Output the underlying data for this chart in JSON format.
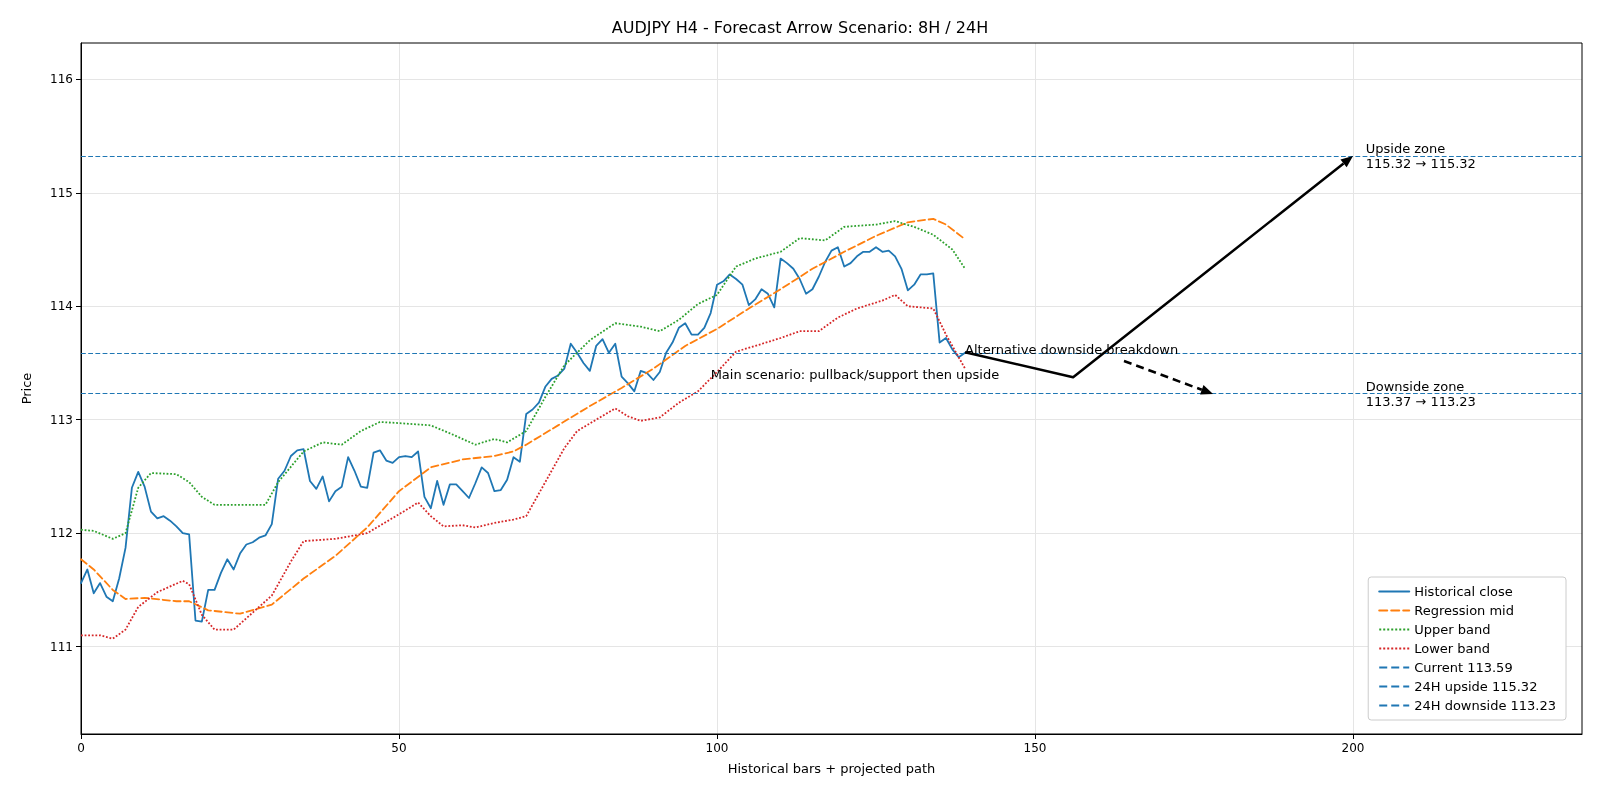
{
  "chart_data": {
    "type": "line",
    "title": "AUDJPY H4 - Forecast Arrow Scenario: 8H / 24H",
    "xlabel": "Historical bars + projected path",
    "ylabel": "Price",
    "xlim": [
      0,
      236
    ],
    "ylim": [
      110.23,
      116.32
    ],
    "xticks": [
      0,
      50,
      100,
      150,
      200
    ],
    "yticks": [
      111,
      112,
      113,
      114,
      115,
      116
    ],
    "grid": true,
    "legend": "bottom right",
    "series": [
      {
        "name": "Historical close",
        "color": "#1f77b4",
        "line_style": "solid",
        "marker": "none",
        "x": [
          0,
          1,
          2,
          3,
          4,
          5,
          6,
          7,
          8,
          9,
          10,
          11,
          12,
          13,
          14,
          15,
          16,
          17,
          18,
          19,
          20,
          21,
          22,
          23,
          24,
          25,
          26,
          27,
          28,
          29,
          30,
          31,
          32,
          33,
          34,
          35,
          36,
          37,
          38,
          39,
          40,
          41,
          42,
          43,
          44,
          45,
          46,
          47,
          48,
          49,
          50,
          51,
          52,
          53,
          54,
          55,
          56,
          57,
          58,
          59,
          60,
          61,
          62,
          63,
          64,
          65,
          66,
          67,
          68,
          69,
          70,
          71,
          72,
          73,
          74,
          75,
          76,
          77,
          78,
          79,
          80,
          81,
          82,
          83,
          84,
          85,
          86,
          87,
          88,
          89,
          90,
          91,
          92,
          93,
          94,
          95,
          96,
          97,
          98,
          99,
          100,
          101,
          102,
          103,
          104,
          105,
          106,
          107,
          108,
          109,
          110,
          111,
          112,
          113,
          114,
          115,
          116,
          117,
          118,
          119,
          120,
          121,
          122,
          123,
          124,
          125,
          126,
          127,
          128,
          129,
          130,
          131,
          132,
          133,
          134,
          135,
          136,
          137,
          138,
          139
        ],
        "values": [
          111.56,
          111.68,
          111.47,
          111.56,
          111.44,
          111.4,
          111.6,
          111.87,
          112.4,
          112.54,
          112.41,
          112.19,
          112.13,
          112.15,
          112.11,
          112.06,
          112.0,
          111.99,
          111.23,
          111.22,
          111.5,
          111.5,
          111.65,
          111.77,
          111.68,
          111.82,
          111.9,
          111.92,
          111.96,
          111.98,
          112.08,
          112.48,
          112.55,
          112.68,
          112.73,
          112.74,
          112.46,
          112.39,
          112.5,
          112.28,
          112.37,
          112.41,
          112.67,
          112.55,
          112.41,
          112.4,
          112.71,
          112.73,
          112.64,
          112.62,
          112.67,
          112.68,
          112.67,
          112.72,
          112.32,
          112.22,
          112.46,
          112.25,
          112.43,
          112.43,
          112.37,
          112.31,
          112.44,
          112.58,
          112.53,
          112.37,
          112.38,
          112.47,
          112.67,
          112.63,
          113.05,
          113.09,
          113.15,
          113.29,
          113.36,
          113.39,
          113.45,
          113.67,
          113.59,
          113.5,
          113.43,
          113.65,
          113.71,
          113.59,
          113.67,
          113.38,
          113.32,
          113.25,
          113.43,
          113.41,
          113.35,
          113.42,
          113.59,
          113.68,
          113.81,
          113.85,
          113.75,
          113.75,
          113.81,
          113.94,
          114.19,
          114.22,
          114.28,
          114.24,
          114.19,
          114.01,
          114.06,
          114.15,
          114.11,
          113.99,
          114.42,
          114.38,
          114.33,
          114.24,
          114.11,
          114.15,
          114.26,
          114.39,
          114.49,
          114.52,
          114.35,
          114.38,
          114.44,
          114.48,
          114.48,
          114.52,
          114.48,
          114.49,
          114.44,
          114.33,
          114.14,
          114.19,
          114.28,
          114.28,
          114.29,
          113.68,
          113.72,
          113.62,
          113.55,
          113.59
        ]
      },
      {
        "name": "Regression mid",
        "color": "#ff7f0e",
        "line_style": "dashed",
        "marker": "none",
        "x": [
          0,
          2,
          5,
          7,
          10,
          15,
          17,
          20,
          25,
          30,
          35,
          40,
          45,
          50,
          55,
          60,
          65,
          68,
          70,
          75,
          80,
          85,
          90,
          95,
          100,
          105,
          110,
          115,
          120,
          125,
          130,
          134,
          136,
          139
        ],
        "values": [
          111.77,
          111.68,
          111.5,
          111.42,
          111.43,
          111.4,
          111.4,
          111.32,
          111.29,
          111.37,
          111.6,
          111.8,
          112.05,
          112.37,
          112.58,
          112.65,
          112.68,
          112.72,
          112.78,
          112.95,
          113.12,
          113.28,
          113.45,
          113.65,
          113.8,
          113.98,
          114.15,
          114.33,
          114.48,
          114.62,
          114.74,
          114.77,
          114.72,
          114.59
        ]
      },
      {
        "name": "Upper band",
        "color": "#2ca02c",
        "line_style": "dotted",
        "marker": "none",
        "x": [
          0,
          2,
          5,
          7,
          9,
          11,
          15,
          17,
          19,
          21,
          25,
          29,
          31,
          35,
          38,
          41,
          44,
          47,
          50,
          55,
          58,
          62,
          65,
          67,
          70,
          73,
          76,
          80,
          84,
          88,
          91,
          94,
          97,
          100,
          103,
          106,
          110,
          113,
          117,
          120,
          125,
          128,
          131,
          134,
          137,
          139
        ],
        "values": [
          112.03,
          112.02,
          111.95,
          112.0,
          112.4,
          112.53,
          112.52,
          112.45,
          112.32,
          112.25,
          112.25,
          112.25,
          112.45,
          112.72,
          112.8,
          112.78,
          112.9,
          112.98,
          112.97,
          112.95,
          112.88,
          112.78,
          112.83,
          112.8,
          112.9,
          113.2,
          113.48,
          113.7,
          113.85,
          113.82,
          113.78,
          113.88,
          114.02,
          114.1,
          114.35,
          114.42,
          114.48,
          114.6,
          114.58,
          114.7,
          114.72,
          114.75,
          114.7,
          114.63,
          114.5,
          114.33
        ]
      },
      {
        "name": "Lower band",
        "color": "#d62728",
        "line_style": "dotted",
        "marker": "none",
        "x": [
          0,
          3,
          5,
          7,
          9,
          12,
          16,
          17,
          19,
          21,
          24,
          27,
          30,
          33,
          35,
          40,
          45,
          48,
          51,
          53,
          55,
          57,
          60,
          62,
          65,
          68,
          70,
          73,
          76,
          78,
          81,
          84,
          86,
          88,
          91,
          94,
          97,
          100,
          103,
          106,
          110,
          113,
          116,
          119,
          122,
          126,
          128,
          130,
          134,
          136,
          138,
          139
        ],
        "values": [
          111.1,
          111.1,
          111.07,
          111.15,
          111.35,
          111.48,
          111.58,
          111.55,
          111.28,
          111.15,
          111.15,
          111.3,
          111.45,
          111.75,
          111.93,
          111.95,
          112.0,
          112.1,
          112.2,
          112.27,
          112.15,
          112.06,
          112.07,
          112.05,
          112.09,
          112.12,
          112.15,
          112.45,
          112.75,
          112.9,
          113.0,
          113.1,
          113.03,
          112.99,
          113.02,
          113.15,
          113.25,
          113.42,
          113.6,
          113.65,
          113.72,
          113.78,
          113.78,
          113.9,
          113.98,
          114.05,
          114.1,
          114.0,
          113.98,
          113.75,
          113.55,
          113.45
        ]
      }
    ],
    "ref_lines": [
      {
        "axis": "y",
        "value": 113.59,
        "label": "Current 113.59",
        "color": "#1f77b4",
        "line_style": "dashed"
      },
      {
        "axis": "y",
        "value": 115.32,
        "label": "24H upside 115.32",
        "color": "#1f77b4",
        "line_style": "dashed"
      },
      {
        "axis": "y",
        "value": 113.23,
        "label": "24H downside 113.23",
        "color": "#1f77b4",
        "line_style": "dashed"
      }
    ],
    "annotations": [
      {
        "text": "Main scenario: pullback/support then upside",
        "x": 99,
        "y": 113.4
      },
      {
        "text": "Alternative downside breakdown",
        "x": 139,
        "y": 113.62
      },
      {
        "text": "Upside zone\n115.32 → 115.32",
        "x": 202,
        "y": 115.32
      },
      {
        "text": "Downside zone\n113.37 → 113.23",
        "x": 202,
        "y": 113.23
      }
    ]
  }
}
